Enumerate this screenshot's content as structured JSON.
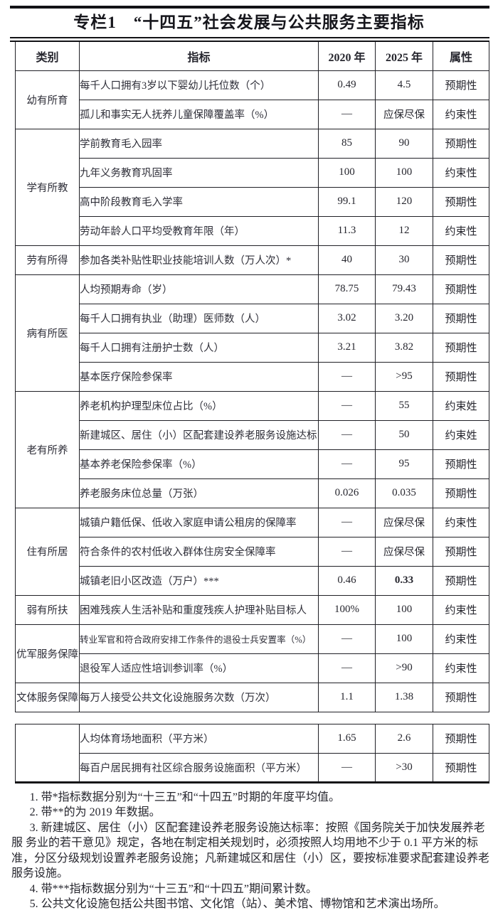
{
  "title": "专栏1　“十四五”社会发展与公共服务主要指标",
  "table": {
    "headers": {
      "category": "类别",
      "indicator": "指标",
      "y2020": "2020 年",
      "y2025": "2025 年",
      "attribute": "属性"
    },
    "sections": [
      {
        "category": "幼有所育",
        "rows": [
          {
            "indicator": "每千人口拥有3岁以下婴幼儿托位数（个）",
            "v2020": "0.49",
            "v2025": "4.5",
            "attr": "预期性"
          },
          {
            "indicator": "孤儿和事实无人抚养儿童保障覆盖率（%）",
            "v2020": "—",
            "v2025": "应保尽保",
            "attr": "约束性",
            "cjk2025": true
          }
        ]
      },
      {
        "category": "学有所教",
        "rows": [
          {
            "indicator": "学前教育毛入园率",
            "v2020": "85",
            "v2025": "90",
            "attr": "预期性"
          },
          {
            "indicator": "九年义务教育巩固率",
            "v2020": "100",
            "v2025": "100",
            "attr": "约束性"
          },
          {
            "indicator": "高中阶段教育毛入学率",
            "v2020": "99.1",
            "v2025": "120",
            "attr": "预期性"
          },
          {
            "indicator": "劳动年龄人口平均受教育年限（年）",
            "v2020": "11.3",
            "v2025": "12",
            "attr": "约束性"
          }
        ]
      },
      {
        "category": "劳有所得",
        "rows": [
          {
            "indicator": "参加各类补贴性职业技能培训人数（万人次）*",
            "v2020": "40",
            "v2025": "30",
            "attr": "预期性"
          }
        ]
      },
      {
        "category": "病有所医",
        "rows": [
          {
            "indicator": "人均预期寿命（岁）",
            "v2020": "78.75",
            "v2025": "79.43",
            "attr": "预期性"
          },
          {
            "indicator": "每千人口拥有执业（助理）医师数（人）",
            "v2020": "3.02",
            "v2025": "3.20",
            "attr": "预期性"
          },
          {
            "indicator": "每千人口拥有注册护士数（人）",
            "v2020": "3.21",
            "v2025": "3.82",
            "attr": "预期性"
          },
          {
            "indicator": "基本医疗保险参保率",
            "v2020": "—",
            "v2025": ">95",
            "attr": "预期性"
          }
        ]
      },
      {
        "category": "老有所养",
        "rows": [
          {
            "indicator": "养老机构护理型床位占比（%）",
            "v2020": "—",
            "v2025": "55",
            "attr": "约束姓"
          },
          {
            "indicator": "新建城区、居住（小）区配套建设养老服务设施达标",
            "v2020": "—",
            "v2025": "50",
            "attr": "约束姓"
          },
          {
            "indicator": "基本养老保险参保率（%）",
            "v2020": "—",
            "v2025": "95",
            "attr": "预期性"
          },
          {
            "indicator": "养老服务床位总量（万张）",
            "v2020": "0.026",
            "v2025": "0.035",
            "attr": "预期性"
          }
        ]
      },
      {
        "category": "住有所居",
        "rows": [
          {
            "indicator": "城镇户籍低保、低收入家庭申请公租房的保障率",
            "v2020": "—",
            "v2025": "应保尽保",
            "attr": "约束性",
            "cjk2025": true
          },
          {
            "indicator": "符合条件的农村低收入群体住房安全保障率",
            "v2020": "—",
            "v2025": "应保尽保",
            "attr": "预期性",
            "cjk2025": true
          },
          {
            "indicator": "城镇老旧小区改造（万户）***",
            "v2020": "0.46",
            "v2025": "0.33",
            "attr": "预期性",
            "bold2025": true
          }
        ]
      },
      {
        "category": "弱有所扶",
        "rows": [
          {
            "indicator": "困难残疾人生活补贴和重度残疾人护理补贴目标人",
            "v2020": "100%",
            "v2025": "100",
            "attr": "约束性"
          }
        ]
      },
      {
        "category": "优军服务保障",
        "rows": [
          {
            "indicator": "转业军官和符合政府安排工作条件的退役士兵安置率（%）",
            "v2020": "—",
            "v2025": "100",
            "attr": "约束性",
            "small": true
          },
          {
            "indicator": "退役军人适应性培训参训率（%）",
            "v2020": "—",
            "v2025": ">90",
            "attr": "约束性"
          }
        ]
      },
      {
        "category": "文体服务保障",
        "rows": [
          {
            "indicator": "每万人接受公共文化设施服务次数（万次）",
            "v2020": "1.1",
            "v2025": "1.38",
            "attr": "预期性"
          }
        ]
      }
    ],
    "appendix_sections": [
      {
        "category": "",
        "rows": [
          {
            "indicator": "人均体育场地面积（平方米）",
            "v2020": "1.65",
            "v2025": "2.6",
            "attr": "预期性"
          },
          {
            "indicator": "每百户居民拥有社区综合服务设施面积（平方米）",
            "v2020": "—",
            "v2025": ">30",
            "attr": "预期性"
          }
        ]
      }
    ]
  },
  "footnotes": [
    "1. 带*指标数据分别为“十三五”和“十四五”时期的年度平均值。",
    "2. 带**的为 2019 年数据。",
    "3. 新建城区、居住（小）区配套建设养老服务设施达标率：按照《国务院关于加快发展养老服 务业的若干意见》规定，各地在制定相关规划时，必须按照人均用地不少于 0.1 平方米的标准，分区分级规划设置养老服务设施；凡新建城区和居住（小）区，要按标准要求配套建设养老服务设施。",
    "4. 带***指标数据分别为“十三五”和“十四五”期间累计数。",
    "5. 公共文化设施包括公共图书馆、文化馆（站）、美术馆、博物馆和艺术演出场所。"
  ]
}
